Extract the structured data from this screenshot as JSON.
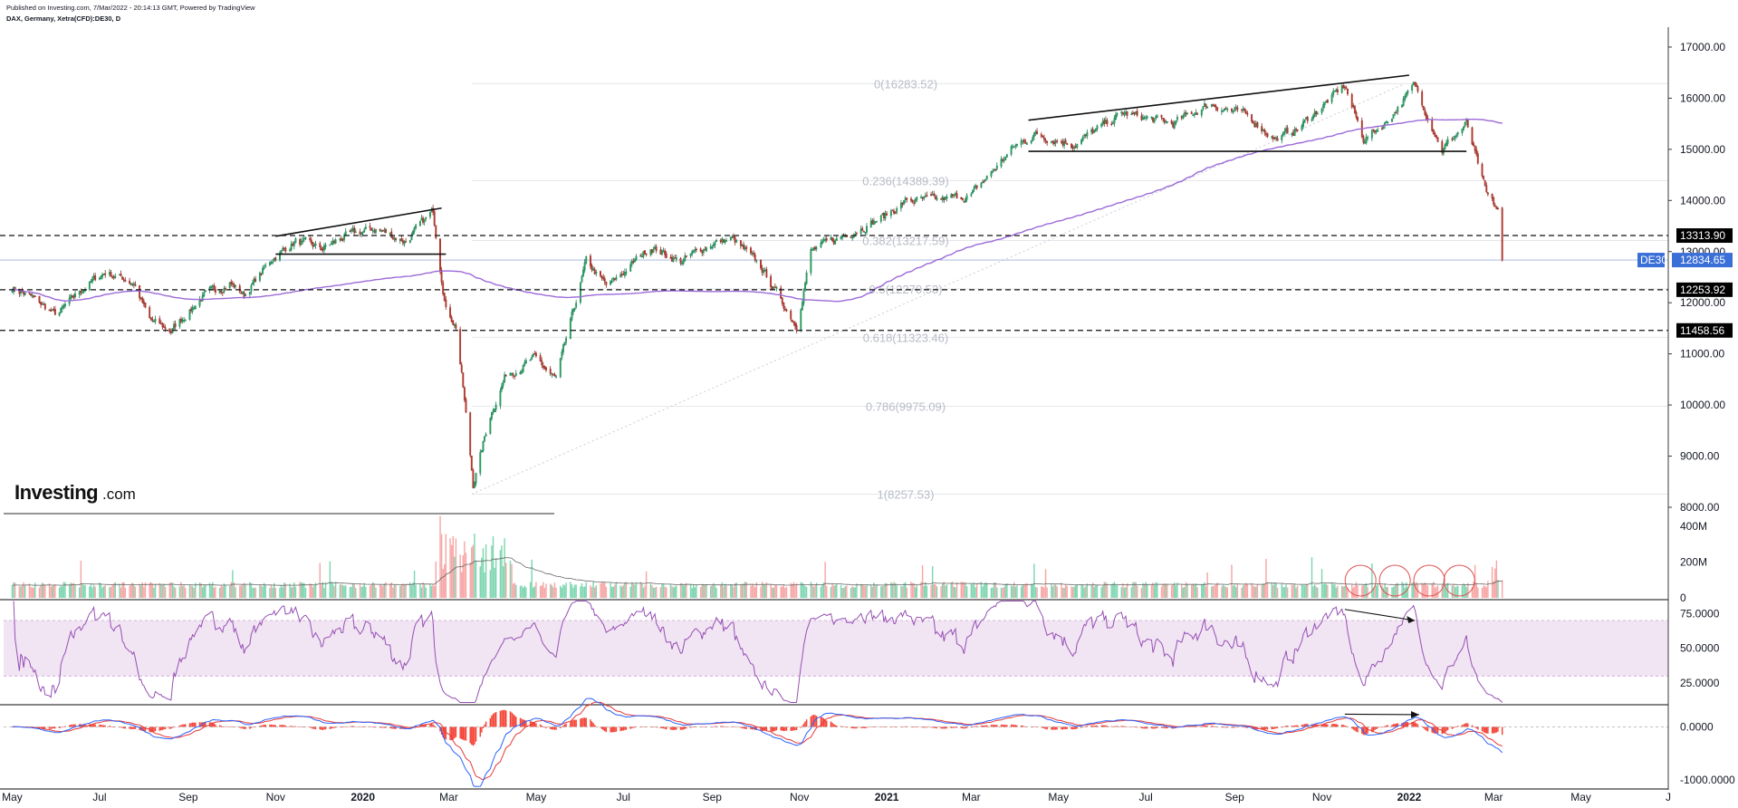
{
  "header": {
    "published": "Published on Investing.com, 7/Mar/2022 - 20:14:13 GMT, Powered by TradingView",
    "symbol": "DAX, Germany, Xetra(CFD):DE30, D"
  },
  "logo": {
    "main": "Investing",
    "suffix": ".com"
  },
  "colors": {
    "up": "#26a69a",
    "down": "#ef5350",
    "ma": "#9c6ad8",
    "rsi": "#9650b4",
    "rsi_band": "#f1e4f3",
    "macd": "#2962ff",
    "signal": "#e53935",
    "hist": "#f44336",
    "volume_up": "#7fd6b1",
    "volume_down": "#f6a7a6",
    "dex_tag": "#3a6fd8",
    "level_tag": "#000000"
  },
  "chart_data": [
    {
      "type": "candlestick",
      "panel": "price",
      "symbol": "DE30",
      "price_axis_ticks": [
        "17000.00",
        "16000.00",
        "15000.00",
        "14000.00",
        "13000.00",
        "12000.00",
        "11000.00",
        "10000.00",
        "9000.00",
        "8000.00"
      ],
      "time_axis_ticks": [
        "May",
        "Jul",
        "Sep",
        "Nov",
        "2020",
        "Mar",
        "May",
        "Jul",
        "Sep",
        "Nov",
        "2021",
        "Mar",
        "May",
        "Jul",
        "Sep",
        "Nov",
        "2022",
        "Mar",
        "May",
        "J"
      ],
      "ylim": [
        7700,
        17300
      ],
      "last_price": {
        "label": "DE30",
        "value": "12834.65"
      },
      "horizontal_levels": [
        {
          "value": 13313.9,
          "label": "13313.90"
        },
        {
          "value": 12253.92,
          "label": "12253.92"
        },
        {
          "value": 11458.56,
          "label": "11458.56"
        }
      ],
      "fibonacci": [
        {
          "label": "0(16283.52)",
          "value": 16283.52
        },
        {
          "label": "0.236(14389.39)",
          "value": 14389.39
        },
        {
          "label": "0.382(13217.59)",
          "value": 13217.59
        },
        {
          "label": "0.5(12270.53)",
          "value": 12270.53
        },
        {
          "label": "0.618(11323.46)",
          "value": 11323.46
        },
        {
          "label": "0.786(9975.09)",
          "value": 9975.09
        },
        {
          "label": "1(8257.53)",
          "value": 8257.53
        }
      ],
      "moving_average": "200-day",
      "path_points": [
        [
          "2019-05-01",
          12300
        ],
        [
          "2019-05-15",
          12100
        ],
        [
          "2019-06-01",
          11750
        ],
        [
          "2019-06-20",
          12300
        ],
        [
          "2019-07-05",
          12600
        ],
        [
          "2019-07-25",
          12400
        ],
        [
          "2019-08-05",
          11650
        ],
        [
          "2019-08-20",
          11450
        ],
        [
          "2019-09-10",
          12100
        ],
        [
          "2019-09-30",
          12400
        ],
        [
          "2019-10-10",
          12150
        ],
        [
          "2019-10-31",
          12900
        ],
        [
          "2019-11-15",
          13200
        ],
        [
          "2019-12-03",
          13050
        ],
        [
          "2019-12-20",
          13300
        ],
        [
          "2020-01-10",
          13450
        ],
        [
          "2020-01-31",
          13200
        ],
        [
          "2020-02-19",
          13780
        ],
        [
          "2020-02-28",
          11900
        ],
        [
          "2020-03-06",
          11550
        ],
        [
          "2020-03-10",
          10600
        ],
        [
          "2020-03-16",
          9000
        ],
        [
          "2020-03-18",
          8440
        ],
        [
          "2020-03-30",
          9800
        ],
        [
          "2020-04-10",
          10600
        ],
        [
          "2020-04-30",
          10900
        ],
        [
          "2020-05-15",
          10500
        ],
        [
          "2020-06-05",
          12800
        ],
        [
          "2020-06-20",
          12300
        ],
        [
          "2020-07-20",
          13100
        ],
        [
          "2020-08-10",
          12800
        ],
        [
          "2020-08-31",
          13150
        ],
        [
          "2020-09-15",
          13250
        ],
        [
          "2020-10-05",
          12700
        ],
        [
          "2020-10-30",
          11560
        ],
        [
          "2020-11-09",
          13000
        ],
        [
          "2020-12-01",
          13300
        ],
        [
          "2020-12-31",
          13700
        ],
        [
          "2021-01-15",
          14000
        ],
        [
          "2021-02-05",
          14000
        ],
        [
          "2021-03-01",
          14100
        ],
        [
          "2021-03-31",
          15050
        ],
        [
          "2021-04-15",
          15300
        ],
        [
          "2021-05-12",
          15100
        ],
        [
          "2021-06-15",
          15700
        ],
        [
          "2021-07-20",
          15500
        ],
        [
          "2021-08-15",
          15900
        ],
        [
          "2021-09-10",
          15650
        ],
        [
          "2021-09-30",
          15200
        ],
        [
          "2021-10-15",
          15400
        ],
        [
          "2021-11-17",
          16250
        ],
        [
          "2021-11-30",
          15200
        ],
        [
          "2021-12-15",
          15500
        ],
        [
          "2022-01-05",
          16250
        ],
        [
          "2022-01-24",
          15000
        ],
        [
          "2022-02-10",
          15500
        ],
        [
          "2022-02-24",
          14100
        ],
        [
          "2022-03-04",
          13800
        ],
        [
          "2022-03-07",
          12834.65
        ]
      ],
      "annotations": [
        "rising wedge trendlines (late 2019)",
        "horizontal support 2019",
        "upper trendline 2021",
        "horizontal support ~15000 (2021)"
      ]
    },
    {
      "type": "bar",
      "panel": "volume",
      "ticks": [
        "400M",
        "200M",
        "0"
      ],
      "ylim": [
        0,
        420
      ],
      "annotations": [
        "four circled volume clusters Nov 2021 - Feb 2022"
      ]
    },
    {
      "type": "line",
      "panel": "rsi",
      "ticks": [
        "75.0000",
        "50.0000",
        "25.0000"
      ],
      "ylim": [
        10,
        85
      ],
      "band": [
        30,
        70
      ],
      "annotations": [
        "divergence arrow Nov 2021 - Jan 2022"
      ]
    },
    {
      "type": "line",
      "panel": "macd",
      "ticks": [
        "0.0000",
        "-1000.0000"
      ],
      "ylim": [
        -1150,
        400
      ],
      "annotations": [
        "divergence arrow Nov 2021 - Jan 2022"
      ]
    }
  ]
}
